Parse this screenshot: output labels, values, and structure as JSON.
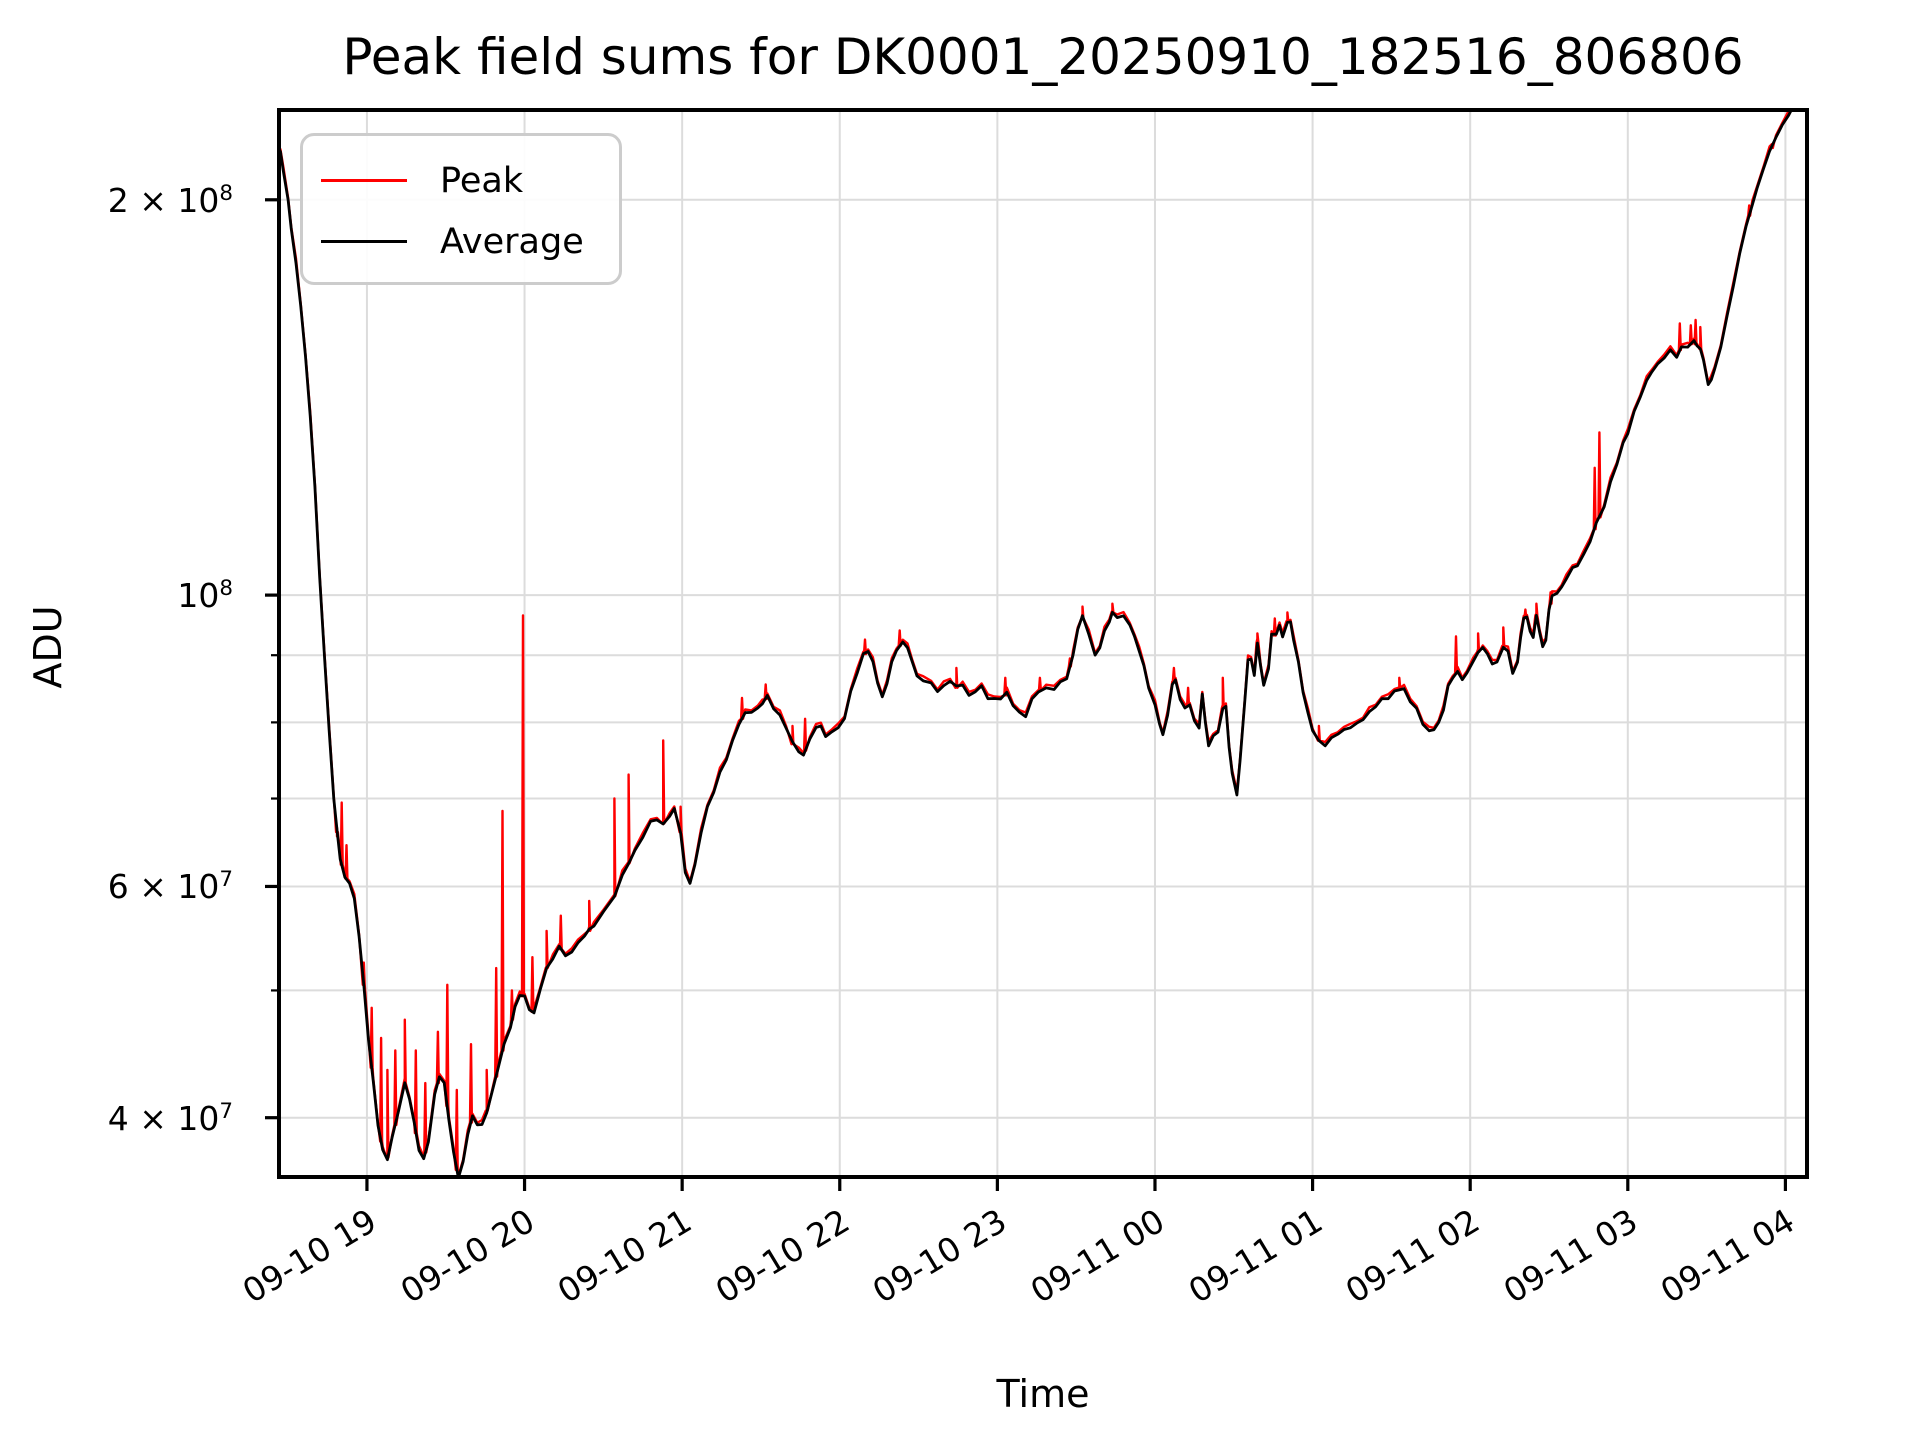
{
  "chart_data": {
    "type": "line",
    "title": "Peak field sums for DK0001_20250910_182516_806806",
    "xlabel": "Time",
    "ylabel": "ADU",
    "grid": true,
    "legend_position": "upper left",
    "x_unit": "hours since 09-10 18:00",
    "value_unit": "1e7 ADU",
    "xlim_hours": [
      18.442,
      28.137
    ],
    "ylim_adu": [
      36050000,
      234100000
    ],
    "yscale": "log",
    "x_ticks": [
      {
        "hour": 19,
        "label": "09-10 19"
      },
      {
        "hour": 20,
        "label": "09-10 20"
      },
      {
        "hour": 21,
        "label": "09-10 21"
      },
      {
        "hour": 22,
        "label": "09-10 22"
      },
      {
        "hour": 23,
        "label": "09-10 23"
      },
      {
        "hour": 24,
        "label": "09-11 00"
      },
      {
        "hour": 25,
        "label": "09-11 01"
      },
      {
        "hour": 26,
        "label": "09-11 02"
      },
      {
        "hour": 27,
        "label": "09-11 03"
      },
      {
        "hour": 28,
        "label": "09-11 04"
      }
    ],
    "y_ticks": [
      {
        "adu": 200000000,
        "label": "2 × 10^8",
        "major": true
      },
      {
        "adu": 100000000,
        "label": "10^8",
        "major": true
      },
      {
        "adu": 90000000,
        "label": "",
        "major": false
      },
      {
        "adu": 80000000,
        "label": "",
        "major": false
      },
      {
        "adu": 70000000,
        "label": "",
        "major": false
      },
      {
        "adu": 60000000,
        "label": "6 × 10^7",
        "major": false
      },
      {
        "adu": 50000000,
        "label": "",
        "major": false
      },
      {
        "adu": 40000000,
        "label": "4 × 10^7",
        "major": false
      }
    ],
    "series": [
      {
        "name": "Peak",
        "color": "#ff0000"
      },
      {
        "name": "Average",
        "color": "#000000"
      }
    ],
    "average_points": [
      [
        18.45,
        21.8
      ],
      [
        18.47,
        21.0
      ],
      [
        18.5,
        20.0
      ],
      [
        18.52,
        19.0
      ],
      [
        18.55,
        17.9
      ],
      [
        18.58,
        16.6
      ],
      [
        18.61,
        15.2
      ],
      [
        18.64,
        13.7
      ],
      [
        18.67,
        12.1
      ],
      [
        18.7,
        10.3
      ],
      [
        18.73,
        9.0
      ],
      [
        18.76,
        7.9
      ],
      [
        18.79,
        7.0
      ],
      [
        18.81,
        6.6
      ],
      [
        18.83,
        6.3
      ],
      [
        18.86,
        6.1
      ],
      [
        18.89,
        6.05
      ],
      [
        18.92,
        5.85
      ],
      [
        18.95,
        5.5
      ],
      [
        18.98,
        5.05
      ],
      [
        19.01,
        4.6
      ],
      [
        19.04,
        4.25
      ],
      [
        19.07,
        3.95
      ],
      [
        19.1,
        3.78
      ],
      [
        19.13,
        3.73
      ],
      [
        19.16,
        3.85
      ],
      [
        19.2,
        4.05
      ],
      [
        19.24,
        4.25
      ],
      [
        19.27,
        4.15
      ],
      [
        19.3,
        3.95
      ],
      [
        19.33,
        3.78
      ],
      [
        19.36,
        3.72
      ],
      [
        19.39,
        3.85
      ],
      [
        19.43,
        4.15
      ],
      [
        19.46,
        4.3
      ],
      [
        19.49,
        4.25
      ],
      [
        19.52,
        4.0
      ],
      [
        19.55,
        3.75
      ],
      [
        19.58,
        3.6
      ],
      [
        19.61,
        3.7
      ],
      [
        19.64,
        3.9
      ],
      [
        19.67,
        4.0
      ],
      [
        19.7,
        3.95
      ],
      [
        19.73,
        3.95
      ],
      [
        19.76,
        4.05
      ],
      [
        19.8,
        4.2
      ],
      [
        19.83,
        4.35
      ],
      [
        19.87,
        4.55
      ],
      [
        19.91,
        4.7
      ],
      [
        19.94,
        4.85
      ],
      [
        19.97,
        4.95
      ],
      [
        20.0,
        4.95
      ],
      [
        20.03,
        4.85
      ],
      [
        20.06,
        4.8
      ],
      [
        20.1,
        5.0
      ],
      [
        20.14,
        5.2
      ],
      [
        20.18,
        5.3
      ],
      [
        20.22,
        5.4
      ],
      [
        20.26,
        5.3
      ],
      [
        20.3,
        5.35
      ],
      [
        20.34,
        5.45
      ],
      [
        20.38,
        5.5
      ],
      [
        20.41,
        5.55
      ],
      [
        20.44,
        5.6
      ],
      [
        20.5,
        5.75
      ],
      [
        20.57,
        5.9
      ],
      [
        20.62,
        6.1
      ],
      [
        20.66,
        6.25
      ],
      [
        20.7,
        6.4
      ],
      [
        20.75,
        6.55
      ],
      [
        20.8,
        6.7
      ],
      [
        20.84,
        6.75
      ],
      [
        20.88,
        6.7
      ],
      [
        20.92,
        6.8
      ],
      [
        20.95,
        6.85
      ],
      [
        20.99,
        6.6
      ],
      [
        21.02,
        6.15
      ],
      [
        21.05,
        6.05
      ],
      [
        21.08,
        6.2
      ],
      [
        21.12,
        6.6
      ],
      [
        21.16,
        6.9
      ],
      [
        21.2,
        7.1
      ],
      [
        21.24,
        7.3
      ],
      [
        21.28,
        7.5
      ],
      [
        21.32,
        7.75
      ],
      [
        21.36,
        8.0
      ],
      [
        21.4,
        8.1
      ],
      [
        21.44,
        8.15
      ],
      [
        21.48,
        8.2
      ],
      [
        21.51,
        8.3
      ],
      [
        21.54,
        8.35
      ],
      [
        21.58,
        8.2
      ],
      [
        21.62,
        8.1
      ],
      [
        21.66,
        7.95
      ],
      [
        21.7,
        7.7
      ],
      [
        21.74,
        7.6
      ],
      [
        21.77,
        7.55
      ],
      [
        21.81,
        7.8
      ],
      [
        21.85,
        7.9
      ],
      [
        21.88,
        7.95
      ],
      [
        21.91,
        7.8
      ],
      [
        21.95,
        7.9
      ],
      [
        21.99,
        7.9
      ],
      [
        22.03,
        8.05
      ],
      [
        22.07,
        8.45
      ],
      [
        22.11,
        8.75
      ],
      [
        22.15,
        9.0
      ],
      [
        22.18,
        9.05
      ],
      [
        22.21,
        8.9
      ],
      [
        22.24,
        8.6
      ],
      [
        22.27,
        8.35
      ],
      [
        22.3,
        8.55
      ],
      [
        22.33,
        8.9
      ],
      [
        22.36,
        9.1
      ],
      [
        22.4,
        9.2
      ],
      [
        22.43,
        9.1
      ],
      [
        22.46,
        8.9
      ],
      [
        22.49,
        8.7
      ],
      [
        22.53,
        8.6
      ],
      [
        22.58,
        8.55
      ],
      [
        22.62,
        8.45
      ],
      [
        22.66,
        8.55
      ],
      [
        22.7,
        8.6
      ],
      [
        22.74,
        8.5
      ],
      [
        22.78,
        8.55
      ],
      [
        22.82,
        8.4
      ],
      [
        22.86,
        8.45
      ],
      [
        22.9,
        8.5
      ],
      [
        22.94,
        8.35
      ],
      [
        22.98,
        8.35
      ],
      [
        23.02,
        8.35
      ],
      [
        23.06,
        8.4
      ],
      [
        23.1,
        8.25
      ],
      [
        23.14,
        8.15
      ],
      [
        23.18,
        8.1
      ],
      [
        23.22,
        8.3
      ],
      [
        23.26,
        8.45
      ],
      [
        23.31,
        8.5
      ],
      [
        23.36,
        8.5
      ],
      [
        23.4,
        8.55
      ],
      [
        23.44,
        8.65
      ],
      [
        23.48,
        9.0
      ],
      [
        23.51,
        9.45
      ],
      [
        23.54,
        9.6
      ],
      [
        23.58,
        9.35
      ],
      [
        23.62,
        9.0
      ],
      [
        23.65,
        9.15
      ],
      [
        23.68,
        9.35
      ],
      [
        23.71,
        9.55
      ],
      [
        23.73,
        9.7
      ],
      [
        23.76,
        9.65
      ],
      [
        23.8,
        9.6
      ],
      [
        23.84,
        9.5
      ],
      [
        23.87,
        9.3
      ],
      [
        23.9,
        9.1
      ],
      [
        23.93,
        8.8
      ],
      [
        23.96,
        8.5
      ],
      [
        24.0,
        8.25
      ],
      [
        24.03,
        8.0
      ],
      [
        24.05,
        7.8
      ],
      [
        24.08,
        8.1
      ],
      [
        24.11,
        8.55
      ],
      [
        24.13,
        8.65
      ],
      [
        24.16,
        8.3
      ],
      [
        24.19,
        8.2
      ],
      [
        24.22,
        8.25
      ],
      [
        24.25,
        8.05
      ],
      [
        24.28,
        7.9
      ],
      [
        24.3,
        8.4
      ],
      [
        24.32,
        8.0
      ],
      [
        24.34,
        7.7
      ],
      [
        24.37,
        7.8
      ],
      [
        24.4,
        7.85
      ],
      [
        24.43,
        8.2
      ],
      [
        24.45,
        8.25
      ],
      [
        24.47,
        7.65
      ],
      [
        24.49,
        7.3
      ],
      [
        24.52,
        7.05
      ],
      [
        24.54,
        7.5
      ],
      [
        24.57,
        8.3
      ],
      [
        24.59,
        8.9
      ],
      [
        24.61,
        8.95
      ],
      [
        24.63,
        8.7
      ],
      [
        24.65,
        9.2
      ],
      [
        24.67,
        8.8
      ],
      [
        24.69,
        8.55
      ],
      [
        24.72,
        8.8
      ],
      [
        24.74,
        9.35
      ],
      [
        24.77,
        9.3
      ],
      [
        24.79,
        9.5
      ],
      [
        24.81,
        9.3
      ],
      [
        24.84,
        9.55
      ],
      [
        24.86,
        9.5
      ],
      [
        24.88,
        9.25
      ],
      [
        24.91,
        8.9
      ],
      [
        24.94,
        8.45
      ],
      [
        24.97,
        8.1
      ],
      [
        25.0,
        7.9
      ],
      [
        25.04,
        7.75
      ],
      [
        25.08,
        7.7
      ],
      [
        25.12,
        7.75
      ],
      [
        25.16,
        7.85
      ],
      [
        25.2,
        7.9
      ],
      [
        25.24,
        7.95
      ],
      [
        25.28,
        7.95
      ],
      [
        25.32,
        8.05
      ],
      [
        25.36,
        8.15
      ],
      [
        25.4,
        8.25
      ],
      [
        25.44,
        8.3
      ],
      [
        25.48,
        8.35
      ],
      [
        25.52,
        8.45
      ],
      [
        25.55,
        8.5
      ],
      [
        25.58,
        8.45
      ],
      [
        25.62,
        8.3
      ],
      [
        25.66,
        8.2
      ],
      [
        25.7,
        8.0
      ],
      [
        25.74,
        7.85
      ],
      [
        25.77,
        7.9
      ],
      [
        25.8,
        8.0
      ],
      [
        25.83,
        8.2
      ],
      [
        25.86,
        8.5
      ],
      [
        25.89,
        8.65
      ],
      [
        25.92,
        8.75
      ],
      [
        25.95,
        8.65
      ],
      [
        25.98,
        8.7
      ],
      [
        26.02,
        8.9
      ],
      [
        26.05,
        9.05
      ],
      [
        26.08,
        9.15
      ],
      [
        26.11,
        9.0
      ],
      [
        26.14,
        8.85
      ],
      [
        26.17,
        8.9
      ],
      [
        26.21,
        9.15
      ],
      [
        26.24,
        9.05
      ],
      [
        26.27,
        8.7
      ],
      [
        26.3,
        8.9
      ],
      [
        26.32,
        9.3
      ],
      [
        26.34,
        9.6
      ],
      [
        26.36,
        9.6
      ],
      [
        26.38,
        9.4
      ],
      [
        26.4,
        9.3
      ],
      [
        26.42,
        9.65
      ],
      [
        26.44,
        9.35
      ],
      [
        26.46,
        9.15
      ],
      [
        26.48,
        9.25
      ],
      [
        26.5,
        9.75
      ],
      [
        26.52,
        9.95
      ],
      [
        26.55,
        10.05
      ],
      [
        26.58,
        10.15
      ],
      [
        26.61,
        10.3
      ],
      [
        26.65,
        10.45
      ],
      [
        26.68,
        10.55
      ],
      [
        26.72,
        10.75
      ],
      [
        26.76,
        11.0
      ],
      [
        26.8,
        11.3
      ],
      [
        26.85,
        11.7
      ],
      [
        26.89,
        12.2
      ],
      [
        26.93,
        12.6
      ],
      [
        26.97,
        13.0
      ],
      [
        27.0,
        13.3
      ],
      [
        27.04,
        13.8
      ],
      [
        27.08,
        14.2
      ],
      [
        27.12,
        14.5
      ],
      [
        27.15,
        14.8
      ],
      [
        27.19,
        15.0
      ],
      [
        27.23,
        15.2
      ],
      [
        27.27,
        15.3
      ],
      [
        27.31,
        15.2
      ],
      [
        27.34,
        15.45
      ],
      [
        27.38,
        15.5
      ],
      [
        27.42,
        15.55
      ],
      [
        27.44,
        15.5
      ],
      [
        27.46,
        15.4
      ],
      [
        27.48,
        15.15
      ],
      [
        27.51,
        14.4
      ],
      [
        27.53,
        14.6
      ],
      [
        27.55,
        14.85
      ],
      [
        27.59,
        15.5
      ],
      [
        27.63,
        16.3
      ],
      [
        27.67,
        17.2
      ],
      [
        27.71,
        18.2
      ],
      [
        27.75,
        19.1
      ],
      [
        27.79,
        19.8
      ],
      [
        27.82,
        20.4
      ],
      [
        27.86,
        21.1
      ],
      [
        27.9,
        21.8
      ],
      [
        27.94,
        22.3
      ],
      [
        27.98,
        22.8
      ],
      [
        28.02,
        23.2
      ],
      [
        28.06,
        23.7
      ]
    ],
    "peak_spikes": [
      [
        18.81,
        6.55
      ],
      [
        18.84,
        6.95
      ],
      [
        18.87,
        6.45
      ],
      [
        18.98,
        5.25
      ],
      [
        19.03,
        4.85
      ],
      [
        19.09,
        4.6
      ],
      [
        19.13,
        4.35
      ],
      [
        19.18,
        4.5
      ],
      [
        19.24,
        4.75
      ],
      [
        19.31,
        4.5
      ],
      [
        19.37,
        4.25
      ],
      [
        19.45,
        4.65
      ],
      [
        19.51,
        5.05
      ],
      [
        19.57,
        4.2
      ],
      [
        19.66,
        4.55
      ],
      [
        19.76,
        4.35
      ],
      [
        19.82,
        5.2
      ],
      [
        19.86,
        6.85
      ],
      [
        19.92,
        5.0
      ],
      [
        19.99,
        9.65
      ],
      [
        20.05,
        5.3
      ],
      [
        20.14,
        5.55
      ],
      [
        20.23,
        5.7
      ],
      [
        20.41,
        5.85
      ],
      [
        20.57,
        7.0
      ],
      [
        20.66,
        7.3
      ],
      [
        20.88,
        7.75
      ],
      [
        20.99,
        6.9
      ],
      [
        21.38,
        8.35
      ],
      [
        21.53,
        8.55
      ],
      [
        21.7,
        7.95
      ],
      [
        21.78,
        8.05
      ],
      [
        22.16,
        9.25
      ],
      [
        22.38,
        9.4
      ],
      [
        22.74,
        8.8
      ],
      [
        23.05,
        8.65
      ],
      [
        23.27,
        8.65
      ],
      [
        23.46,
        8.95
      ],
      [
        23.54,
        9.8
      ],
      [
        23.73,
        9.85
      ],
      [
        24.12,
        8.8
      ],
      [
        24.21,
        8.5
      ],
      [
        24.43,
        8.65
      ],
      [
        24.65,
        9.35
      ],
      [
        24.76,
        9.6
      ],
      [
        24.84,
        9.7
      ],
      [
        25.04,
        7.95
      ],
      [
        25.55,
        8.65
      ],
      [
        25.91,
        9.3
      ],
      [
        26.05,
        9.35
      ],
      [
        26.21,
        9.45
      ],
      [
        26.35,
        9.75
      ],
      [
        26.42,
        9.85
      ],
      [
        26.51,
        10.05
      ],
      [
        26.79,
        12.5
      ],
      [
        26.82,
        13.3
      ],
      [
        27.33,
        16.1
      ],
      [
        27.4,
        16.05
      ],
      [
        27.43,
        16.2
      ],
      [
        27.46,
        16.0
      ],
      [
        27.77,
        19.8
      ],
      [
        27.92,
        21.9
      ]
    ]
  }
}
